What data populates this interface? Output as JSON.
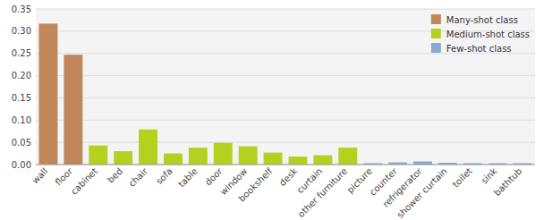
{
  "chart_data": {
    "type": "bar",
    "categories": [
      "wall",
      "floor",
      "cabinet",
      "bed",
      "chair",
      "sofa",
      "table",
      "door",
      "window",
      "bookshelf",
      "desk",
      "curtain",
      "other furniture",
      "picture",
      "counter",
      "refrigerator",
      "shower curtain",
      "toilet",
      "sink",
      "bathtub"
    ],
    "series": [
      {
        "name": "Many-shot class",
        "color": "#c1865a",
        "values": [
          0.317,
          0.247,
          null,
          null,
          null,
          null,
          null,
          null,
          null,
          null,
          null,
          null,
          null,
          null,
          null,
          null,
          null,
          null,
          null,
          null
        ]
      },
      {
        "name": "Medium-shot class",
        "color": "#b5d120",
        "values": [
          null,
          null,
          0.043,
          0.03,
          0.079,
          0.025,
          0.038,
          0.049,
          0.041,
          0.027,
          0.018,
          0.021,
          0.038,
          null,
          null,
          null,
          null,
          null,
          null,
          null
        ]
      },
      {
        "name": "Few-shot class",
        "color": "#8baad0",
        "values": [
          null,
          null,
          null,
          null,
          null,
          null,
          null,
          null,
          null,
          null,
          null,
          null,
          null,
          0.003,
          0.005,
          0.007,
          0.004,
          0.003,
          0.003,
          0.003
        ]
      }
    ],
    "stacked": true,
    "ylim": [
      0,
      0.35
    ],
    "yticks": [
      {
        "value": 0,
        "label": "0.00"
      },
      0.05,
      {
        "value": 0.1,
        "label": "0.10"
      },
      0.15,
      {
        "value": 0.2,
        "label": "0.20"
      },
      0.25,
      {
        "value": 0.3,
        "label": "0.30"
      },
      0.35
    ],
    "grid": true,
    "legend": "upper right"
  }
}
